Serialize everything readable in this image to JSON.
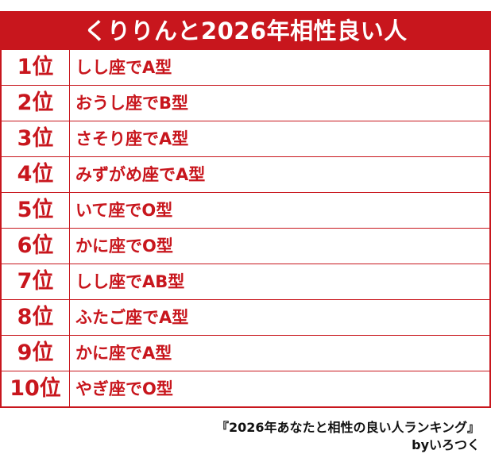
{
  "title": "くりりんと2026年相性良い人",
  "rows": [
    {
      "rank": "1位",
      "match": "しし座でA型"
    },
    {
      "rank": "2位",
      "match": "おうし座でB型"
    },
    {
      "rank": "3位",
      "match": "さそり座でA型"
    },
    {
      "rank": "4位",
      "match": "みずがめ座でA型"
    },
    {
      "rank": "5位",
      "match": "いて座でO型"
    },
    {
      "rank": "6位",
      "match": "かに座でO型"
    },
    {
      "rank": "7位",
      "match": "しし座でAB型"
    },
    {
      "rank": "8位",
      "match": "ふたご座でA型"
    },
    {
      "rank": "9位",
      "match": "かに座でA型"
    },
    {
      "rank": "10位",
      "match": "やぎ座でO型"
    }
  ],
  "footer": {
    "line1": "『2026年あなたと相性の良い人ランキング』",
    "line2": "byいろつく"
  },
  "colors": {
    "accent": "#c8161d",
    "background": "#ffffff",
    "footer_text": "#111111"
  }
}
